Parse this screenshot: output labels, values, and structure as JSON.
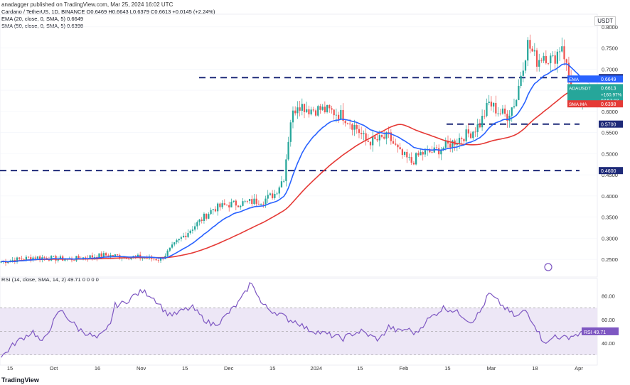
{
  "header": {
    "published_by": "anadagger published on TradingView.com, Mar 25, 2024 16:02 UTC",
    "symbol_line": "Cardano / TetherUS, 1D, BINANCE  O0.6469  H0.6643  L0.6379  C0.6613  +0.0145 (+2.24%)",
    "ema_line": "EMA (20, close, 0, SMA, 5)  0.6649",
    "sma_line": "SMA (50, close, 0, SMA, 5)  0.6398",
    "currency": "USDT"
  },
  "rsi_header": "RSI (14, close, SMA, 14, 2)  49.71  0  0  0  0",
  "footer_logo": "TradingView",
  "colors": {
    "up": "#26a69a",
    "down": "#ef5350",
    "ema": "#2962ff",
    "sma": "#e53935",
    "rsi": "#7e57c2",
    "level": "#1e2a78",
    "rsi_band": "#ede7f6"
  },
  "chart_data": [
    {
      "type": "candlestick",
      "title": "Cardano / TetherUS, 1D, BINANCE",
      "ylim": [
        0.225,
        0.83
      ],
      "y_ticks": [
        "0.8000",
        "0.7500",
        "0.7000",
        "0.6500",
        "0.6000",
        "0.5500",
        "0.5000",
        "0.4500",
        "0.4000",
        "0.3500",
        "0.3000",
        "0.2500"
      ],
      "x_ticks": [
        "15",
        "Oct",
        "16",
        "Nov",
        "15",
        "Dec",
        "15",
        "2024",
        "15",
        "Feb",
        "15",
        "Mar",
        "18",
        "Apr"
      ],
      "horizontal_levels": [
        {
          "value": 0.68,
          "label": "0.6800"
        },
        {
          "value": 0.57,
          "label": "0.5700"
        },
        {
          "value": 0.46,
          "label": "0.4600"
        }
      ],
      "price_labels": [
        {
          "name": "EMA",
          "value": "0.6649"
        },
        {
          "name": "ADAUSDT",
          "value": "0.6613",
          "extra": [
            "+160.97%",
            "07:57:18"
          ]
        },
        {
          "name": "SMA:MA",
          "value": "0.6398"
        }
      ],
      "series": [
        {
          "name": "EMA (20)",
          "last": 0.6649
        },
        {
          "name": "SMA (50)",
          "last": 0.6398
        }
      ],
      "close_anchors": [
        [
          0,
          0.245
        ],
        [
          15,
          0.255
        ],
        [
          30,
          0.25
        ],
        [
          45,
          0.26
        ],
        [
          60,
          0.255
        ],
        [
          70,
          0.25
        ],
        [
          77,
          0.29
        ],
        [
          85,
          0.33
        ],
        [
          93,
          0.37
        ],
        [
          100,
          0.38
        ],
        [
          108,
          0.385
        ],
        [
          115,
          0.39
        ],
        [
          120,
          0.405
        ],
        [
          124,
          0.445
        ],
        [
          127,
          0.58
        ],
        [
          130,
          0.62
        ],
        [
          135,
          0.605
        ],
        [
          140,
          0.605
        ],
        [
          145,
          0.6
        ],
        [
          150,
          0.59
        ],
        [
          153,
          0.575
        ],
        [
          156,
          0.56
        ],
        [
          160,
          0.53
        ],
        [
          164,
          0.53
        ],
        [
          170,
          0.54
        ],
        [
          175,
          0.5
        ],
        [
          180,
          0.48
        ],
        [
          184,
          0.5
        ],
        [
          190,
          0.505
        ],
        [
          196,
          0.52
        ],
        [
          202,
          0.54
        ],
        [
          206,
          0.55
        ],
        [
          210,
          0.57
        ],
        [
          214,
          0.62
        ],
        [
          218,
          0.6
        ],
        [
          222,
          0.59
        ],
        [
          226,
          0.63
        ],
        [
          228,
          0.69
        ],
        [
          231,
          0.76
        ],
        [
          235,
          0.72
        ],
        [
          238,
          0.735
        ],
        [
          242,
          0.72
        ],
        [
          246,
          0.76
        ],
        [
          249,
          0.68
        ],
        [
          252,
          0.63
        ],
        [
          256,
          0.62
        ],
        [
          258,
          0.6613
        ]
      ]
    },
    {
      "type": "line",
      "title": "RSI (14, close, SMA, 14, 2)",
      "ylim": [
        25,
        90
      ],
      "y_ticks": [
        "80.00",
        "60.00",
        "40.00"
      ],
      "band": [
        30,
        70
      ],
      "last": 49.71,
      "last_label": "RSI 49.71",
      "anchors": [
        [
          0,
          28
        ],
        [
          6,
          40
        ],
        [
          10,
          45
        ],
        [
          14,
          50
        ],
        [
          18,
          40
        ],
        [
          22,
          55
        ],
        [
          26,
          68
        ],
        [
          30,
          60
        ],
        [
          34,
          52
        ],
        [
          38,
          48
        ],
        [
          42,
          44
        ],
        [
          46,
          50
        ],
        [
          48,
          58
        ],
        [
          50,
          72
        ],
        [
          54,
          74
        ],
        [
          58,
          80
        ],
        [
          62,
          84
        ],
        [
          66,
          80
        ],
        [
          70,
          72
        ],
        [
          72,
          66
        ],
        [
          76,
          64
        ],
        [
          80,
          68
        ],
        [
          84,
          70
        ],
        [
          88,
          62
        ],
        [
          92,
          56
        ],
        [
          96,
          58
        ],
        [
          100,
          66
        ],
        [
          104,
          74
        ],
        [
          107,
          82
        ],
        [
          109,
          90
        ],
        [
          111,
          88
        ],
        [
          114,
          74
        ],
        [
          118,
          68
        ],
        [
          122,
          65
        ],
        [
          126,
          60
        ],
        [
          130,
          58
        ],
        [
          134,
          52
        ],
        [
          138,
          50
        ],
        [
          142,
          48
        ],
        [
          146,
          46
        ],
        [
          150,
          44
        ],
        [
          154,
          48
        ],
        [
          158,
          50
        ],
        [
          162,
          46
        ],
        [
          166,
          43
        ],
        [
          170,
          54
        ],
        [
          174,
          50
        ],
        [
          178,
          52
        ],
        [
          182,
          48
        ],
        [
          186,
          58
        ],
        [
          190,
          64
        ],
        [
          194,
          70
        ],
        [
          198,
          68
        ],
        [
          202,
          64
        ],
        [
          206,
          58
        ],
        [
          210,
          66
        ],
        [
          214,
          82
        ],
        [
          218,
          75
        ],
        [
          222,
          68
        ],
        [
          226,
          62
        ],
        [
          230,
          68
        ],
        [
          234,
          56
        ],
        [
          237,
          44
        ],
        [
          240,
          40
        ],
        [
          243,
          47
        ],
        [
          246,
          44
        ],
        [
          250,
          46
        ],
        [
          254,
          48
        ],
        [
          258,
          49.71
        ]
      ]
    }
  ]
}
